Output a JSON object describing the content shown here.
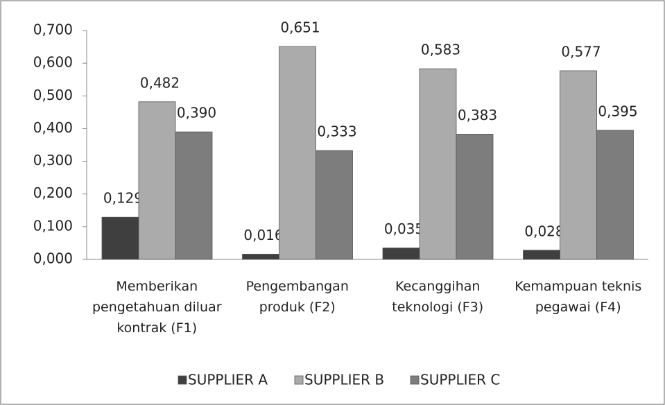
{
  "chart_data": {
    "type": "bar",
    "categories": [
      "Memberikan pengetahuan diluar kontrak (F1)",
      "Pengembangan produk (F2)",
      "Kecanggihan teknologi (F3)",
      "Kemampuan teknis pegawai (F4)"
    ],
    "series": [
      {
        "name": "SUPPLIER A",
        "color": "#3f3f3f",
        "values": [
          0.129,
          0.016,
          0.035,
          0.028
        ],
        "value_labels": [
          "0,129",
          "0,016",
          "0,035",
          "0,028"
        ]
      },
      {
        "name": "SUPPLIER B",
        "color": "#ababab",
        "values": [
          0.482,
          0.651,
          0.583,
          0.577
        ],
        "value_labels": [
          "0,482",
          "0,651",
          "0,583",
          "0,577"
        ]
      },
      {
        "name": "SUPPLIER C",
        "color": "#7d7d7d",
        "values": [
          0.39,
          0.333,
          0.383,
          0.395
        ],
        "value_labels": [
          "0,390",
          "0,333",
          "0,383",
          "0,395"
        ]
      }
    ],
    "ylim": [
      0,
      0.7
    ],
    "yticks": [
      {
        "value": 0,
        "label": "0,000"
      },
      {
        "value": 0.1,
        "label": "0,100"
      },
      {
        "value": 0.2,
        "label": "0,200"
      },
      {
        "value": 0.3,
        "label": "0,300"
      },
      {
        "value": 0.4,
        "label": "0,400"
      },
      {
        "value": 0.5,
        "label": "0,500"
      },
      {
        "value": 0.6,
        "label": "0,600"
      },
      {
        "value": 0.7,
        "label": "0,700"
      }
    ],
    "grid": false
  }
}
